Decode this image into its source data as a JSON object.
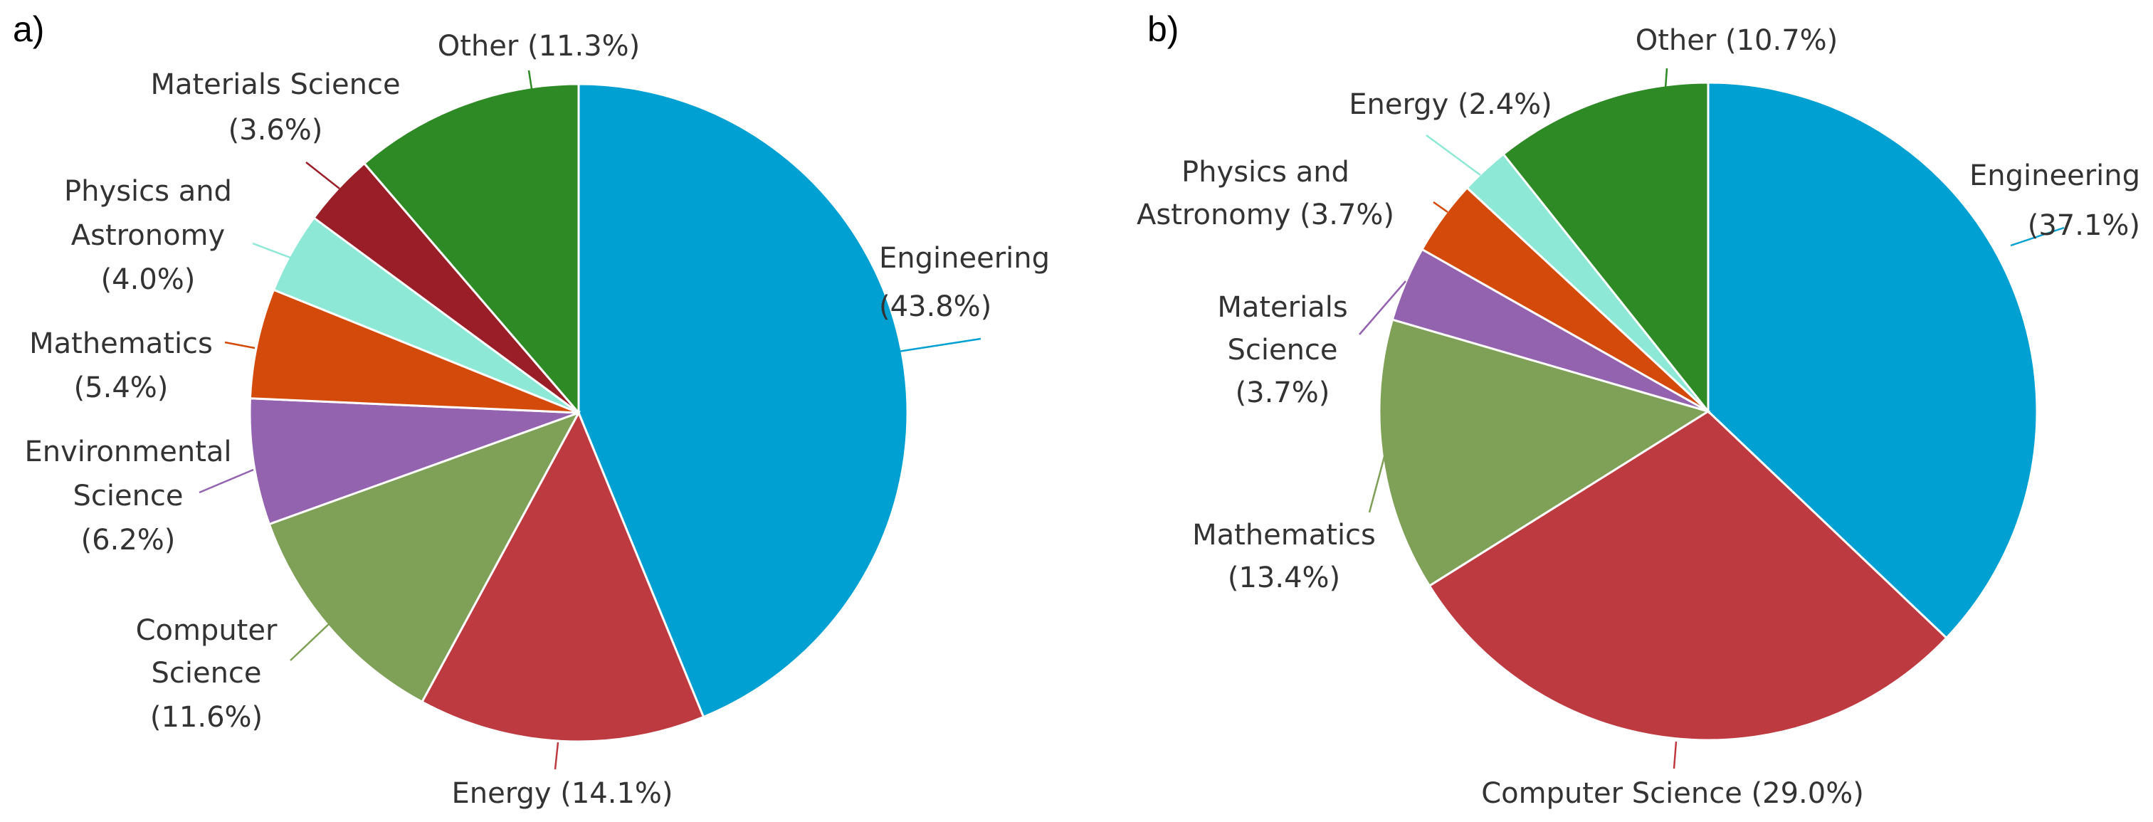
{
  "chart_data": [
    {
      "type": "pie",
      "panel_label": "a)",
      "title": "",
      "slices": [
        {
          "label": "Engineering",
          "value": 43.8,
          "pct_text": "(43.8%)",
          "color": "#00A0D2"
        },
        {
          "label": "Energy",
          "value": 14.1,
          "pct_text": "(14.1%)",
          "color": "#BE3A41"
        },
        {
          "label": "Computer Science",
          "value": 11.6,
          "pct_text": "(11.6%)",
          "color": "#7FA057"
        },
        {
          "label": "Environmental Science",
          "value": 6.2,
          "pct_text": "(6.2%)",
          "color": "#9463B0"
        },
        {
          "label": "Mathematics",
          "value": 5.4,
          "pct_text": "(5.4%)",
          "color": "#D44A0A"
        },
        {
          "label": "Physics and Astronomy",
          "value": 4.0,
          "pct_text": "(4.0%)",
          "color": "#8DE8D6"
        },
        {
          "label": "Materials Science",
          "value": 3.6,
          "pct_text": "(3.6%)",
          "color": "#9A1E27"
        },
        {
          "label": "Other",
          "value": 11.3,
          "pct_text": "(11.3%)",
          "color": "#2E8A25"
        }
      ]
    },
    {
      "type": "pie",
      "panel_label": "b)",
      "title": "",
      "slices": [
        {
          "label": "Engineering",
          "value": 37.1,
          "pct_text": "(37.1%)",
          "color": "#00A0D2"
        },
        {
          "label": "Computer Science",
          "value": 29.0,
          "pct_text": "(29.0%)",
          "color": "#BE3A41"
        },
        {
          "label": "Mathematics",
          "value": 13.4,
          "pct_text": "(13.4%)",
          "color": "#7FA057"
        },
        {
          "label": "Materials Science",
          "value": 3.7,
          "pct_text": "(3.7%)",
          "color": "#9463B0"
        },
        {
          "label": "Physics and Astronomy",
          "value": 3.7,
          "pct_text": "(3.7%)",
          "color": "#D44A0A"
        },
        {
          "label": "Energy",
          "value": 2.4,
          "pct_text": "(2.4%)",
          "color": "#8DE8D6"
        },
        {
          "label": "Other",
          "value": 10.7,
          "pct_text": "(10.7%)",
          "color": "#2E8A25"
        }
      ]
    }
  ]
}
